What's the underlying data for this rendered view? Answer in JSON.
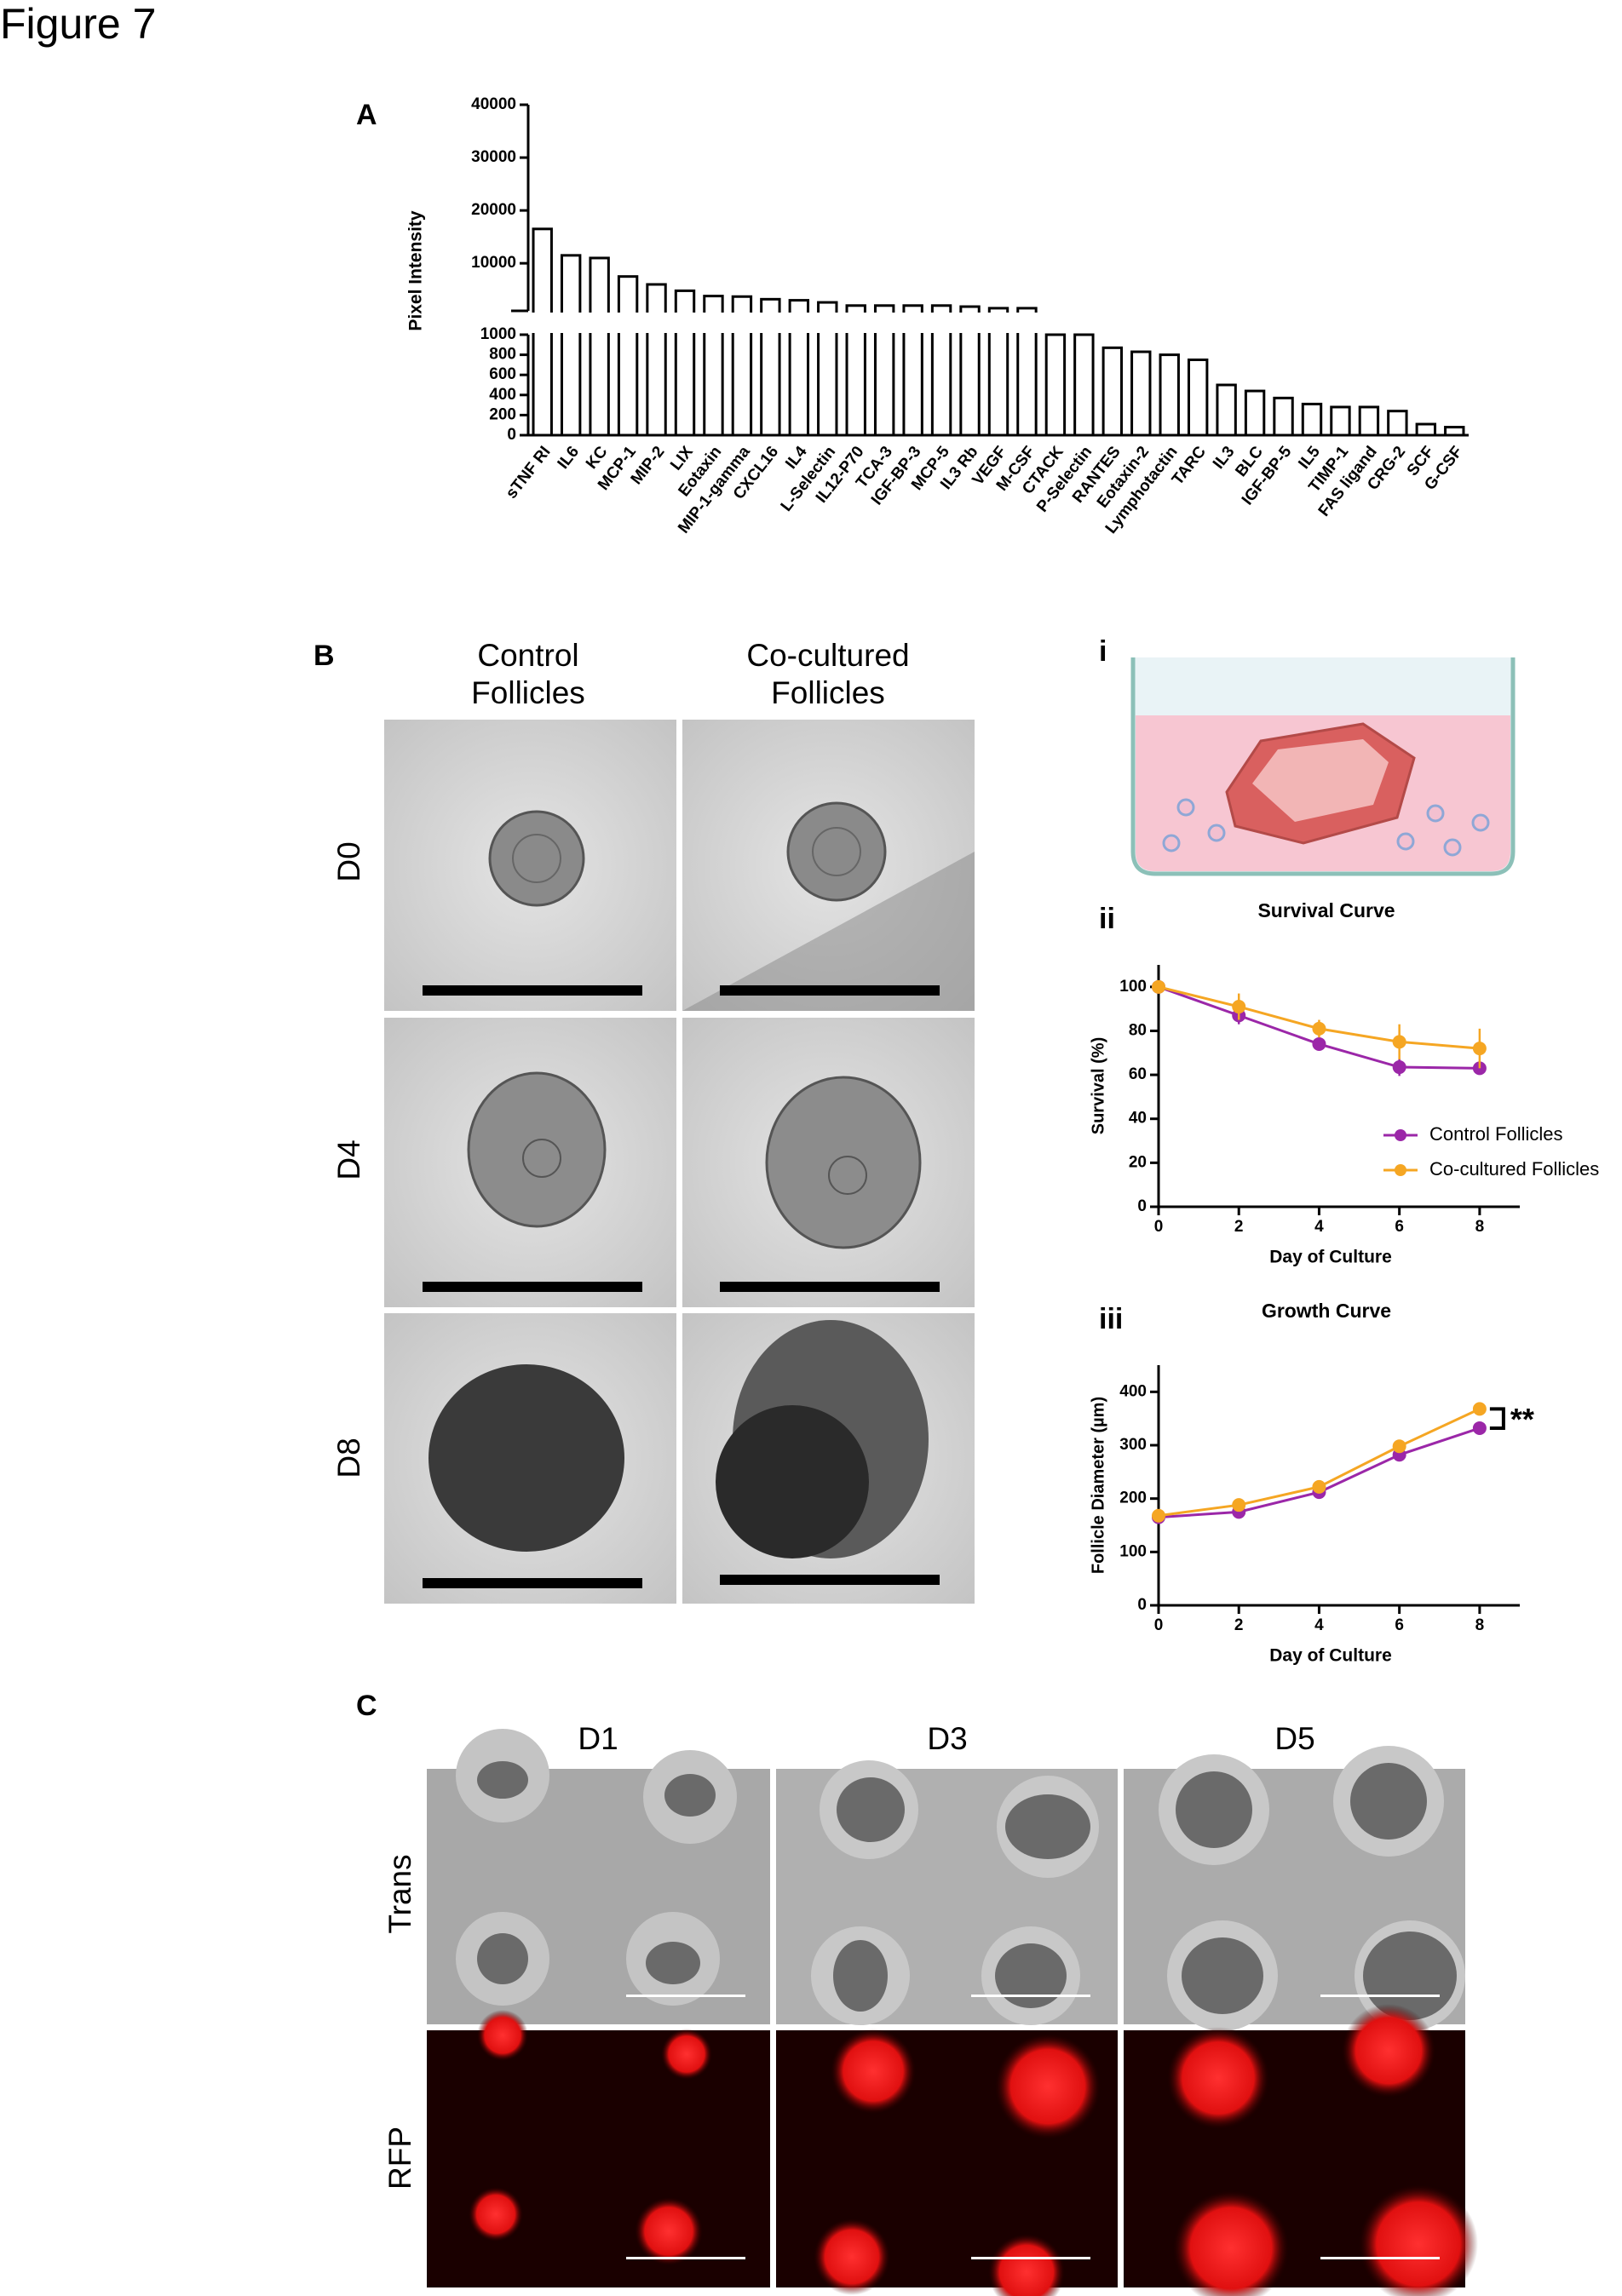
{
  "figure_title": "Figure 7",
  "panel_labels": [
    "A",
    "B",
    "C"
  ],
  "panel_b": {
    "sub_labels": [
      "i"
    ],
    "columns": [
      "Control Follicles",
      "Co-cultured Follicles"
    ],
    "rows": [
      "D0",
      "D4",
      "D8"
    ]
  },
  "panel_c": {
    "columns": [
      "D1",
      "D3",
      "D5"
    ],
    "rows": [
      "Trans",
      "RFP"
    ]
  },
  "chart_data": [
    {
      "type": "bar",
      "ylabel": "Pixel Intensity",
      "categories": [
        "sTNF RI",
        "IL6",
        "KC",
        "MCP-1",
        "MIP-2",
        "LIX",
        "Eotaxin",
        "MIP-1-gamma",
        "CXCL16",
        "IL4",
        "L-Selectin",
        "IL12-P70",
        "TCA-3",
        "IGF-BP-3",
        "MCP-5",
        "IL3 Rb",
        "VEGF",
        "M-CSF",
        "CTACK",
        "P-Selectin",
        "RANTES",
        "Eotaxin-2",
        "Lymphotactin",
        "TARC",
        "IL3",
        "BLC",
        "IGF-BP-5",
        "IL5",
        "TIMP-1",
        "FAS ligand",
        "CRG-2",
        "SCF",
        "G-CSF"
      ],
      "values": [
        16500,
        11500,
        11000,
        7500,
        6000,
        4800,
        3800,
        3700,
        3200,
        3000,
        2600,
        2000,
        2000,
        2000,
        2000,
        1800,
        1500,
        1500,
        1000,
        1000,
        870,
        830,
        800,
        750,
        500,
        440,
        370,
        310,
        280,
        280,
        240,
        110,
        80
      ],
      "color": "#ffffff",
      "ylim": [
        0,
        40000
      ],
      "axis_break": 1000,
      "yticks": [
        0,
        200,
        400,
        600,
        800,
        1000,
        10000,
        20000,
        30000,
        40000
      ]
    },
    {
      "type": "line",
      "panel_label": "ii",
      "title": "Survival Curve",
      "xlabel": "Day of Culture",
      "ylabel": "Survival (%)",
      "x": [
        0,
        2,
        4,
        6,
        8
      ],
      "xlim": [
        0,
        9
      ],
      "xticks": [
        0,
        2,
        4,
        6,
        8
      ],
      "ylim": [
        0,
        110
      ],
      "yticks": [
        0,
        20,
        40,
        60,
        80,
        100
      ],
      "legend": "right",
      "series": [
        {
          "name": "Control Follicles",
          "color": "#9b27a8",
          "values": [
            100,
            87,
            74,
            63.5,
            63
          ],
          "errors": [
            0,
            4,
            2,
            4,
            0
          ]
        },
        {
          "name": "Co-cultured Follicles",
          "color": "#f5a623",
          "values": [
            100,
            91,
            81,
            75,
            72
          ],
          "errors": [
            0,
            6,
            4,
            8,
            9
          ]
        }
      ]
    },
    {
      "type": "line",
      "panel_label": "iii",
      "title": "Growth Curve",
      "xlabel": "Day of Culture",
      "ylabel": "Follicle Diameter (µm)",
      "x": [
        0,
        2,
        4,
        6,
        8
      ],
      "xlim": [
        0,
        9
      ],
      "xticks": [
        0,
        2,
        4,
        6,
        8
      ],
      "ylim": [
        0,
        450
      ],
      "yticks": [
        0,
        100,
        200,
        300,
        400
      ],
      "annotation": "**",
      "series": [
        {
          "name": "Control Follicles",
          "color": "#9b27a8",
          "values": [
            165,
            175,
            212,
            282,
            332
          ],
          "errors": [
            5,
            5,
            5,
            10,
            10
          ]
        },
        {
          "name": "Co-cultured Follicles",
          "color": "#f5a623",
          "values": [
            168,
            188,
            222,
            298,
            368
          ],
          "errors": [
            5,
            5,
            5,
            8,
            12
          ]
        }
      ]
    }
  ]
}
